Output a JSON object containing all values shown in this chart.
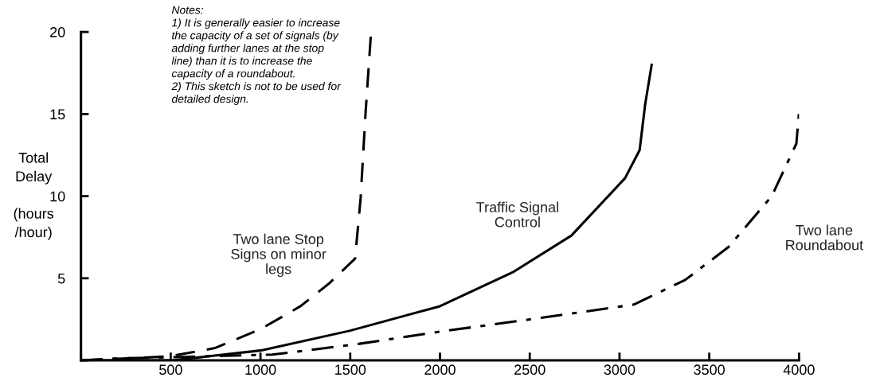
{
  "chart_data": {
    "type": "line",
    "ylabel": "Total\nDelay\n\n(hours\n/hour)",
    "xlim": [
      0,
      4000
    ],
    "xticks": [
      {
        "value": 0,
        "label": null
      },
      500,
      1000,
      1500,
      2000,
      2500,
      3000,
      3500,
      4000
    ],
    "ylim": [
      0,
      20
    ],
    "yticks": [
      {
        "value": 0,
        "label": null
      },
      5,
      10,
      15,
      20
    ],
    "grid": false,
    "legend": false,
    "annotations": [
      "Notes:\n1) It is generally easier to increase\nthe capacity of a set of signals (by\nadding further lanes at the stop\nline) than it is to increase the\ncapacity of a roundabout.\n2) This sketch is not to be used for\ndetailed design."
    ],
    "series": [
      {
        "name": "Two lane Stop\nSigns on minor\nlegs",
        "color": "#000000",
        "line_style": "dashed",
        "x": [
          0,
          491,
          746,
          1000,
          1223,
          1384,
          1527,
          1558,
          1585,
          1616
        ],
        "values": [
          0,
          0.24,
          0.75,
          1.9,
          3.3,
          4.7,
          6.2,
          9.9,
          15,
          20
        ]
      },
      {
        "name": "Traffic Signal\nControl",
        "color": "#000000",
        "line_style": "solid",
        "x": [
          0,
          509,
          1000,
          1496,
          2000,
          2411,
          2732,
          3031,
          3112,
          3143,
          3179
        ],
        "values": [
          0,
          0,
          0.6,
          1.8,
          3.3,
          5.4,
          7.6,
          11.1,
          12.8,
          15.6,
          18
        ]
      },
      {
        "name": "Two lane\nRoundabout",
        "color": "#000000",
        "line_style": "dashdot",
        "x": [
          0,
          156,
          1067,
          1545,
          2000,
          2571,
          3080,
          3366,
          3607,
          3848,
          3985,
          4000
        ],
        "values": [
          0,
          0.1,
          0.35,
          1.0,
          1.75,
          2.6,
          3.4,
          4.9,
          6.9,
          10.0,
          13.2,
          15.1
        ]
      }
    ]
  }
}
